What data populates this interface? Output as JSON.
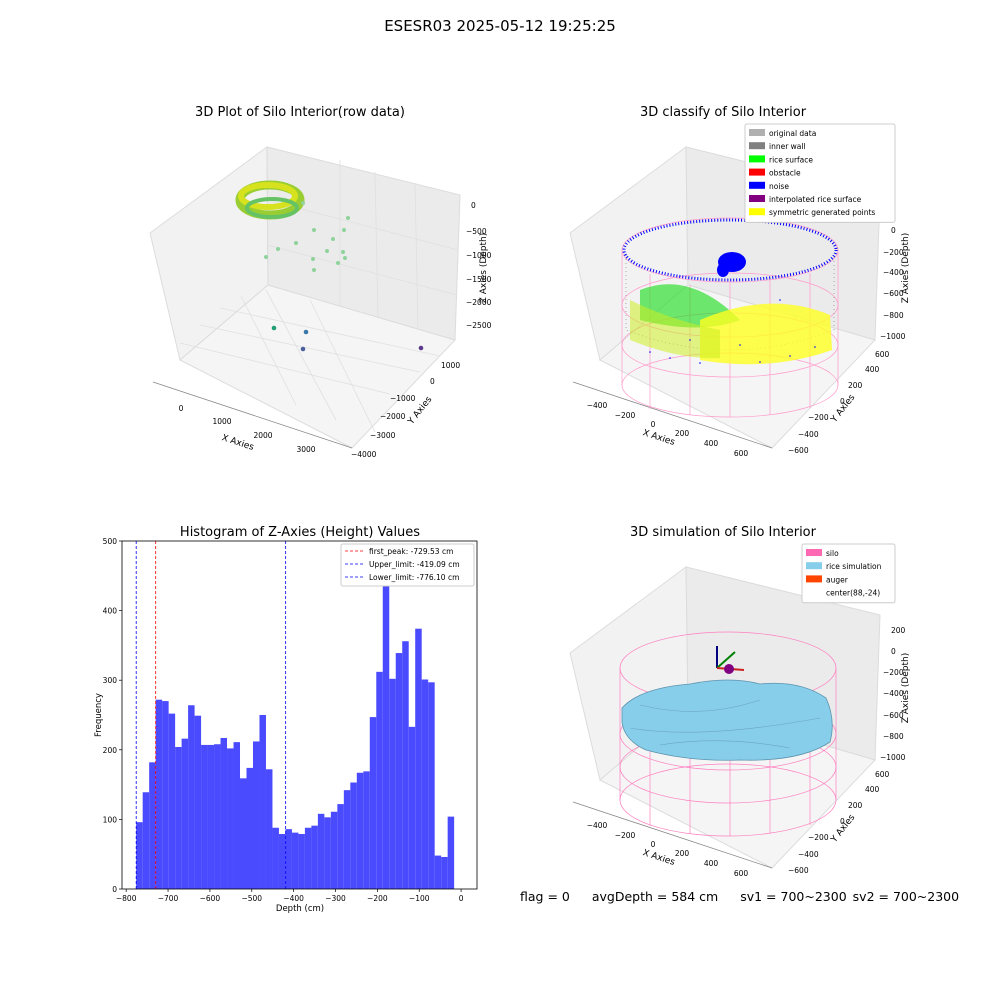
{
  "figure": {
    "suptitle": "ESESR03 2025-05-12 19:25:25",
    "status": {
      "flag": "flag = 0",
      "avg_depth": "avgDepth = 584 cm",
      "sv1": "sv1 = 700~2300",
      "sv2": "sv2 = 700~2300"
    }
  },
  "chart_data": [
    {
      "type": "scatter",
      "title": "3D Plot of Silo Interior(row data)",
      "xlabel": "X Axies",
      "ylabel": "Y Axies",
      "zlabel": "Z Axies (Depth)",
      "x_ticks": [
        "0",
        "1000",
        "2000",
        "3000"
      ],
      "y_ticks": [
        "1000",
        "0",
        "−1000",
        "−2000",
        "−3000",
        "−4000"
      ],
      "z_ticks": [
        "0",
        "−500",
        "−1000",
        "−1500",
        "−2000",
        "−2500"
      ],
      "colormap": "viridis"
    },
    {
      "type": "scatter",
      "title": "3D classify of Silo Interior",
      "xlabel": "X Axies",
      "ylabel": "Y Axies",
      "zlabel": "Z Axies (Depth)",
      "x_ticks": [
        "−400",
        "−200",
        "0",
        "200",
        "400",
        "600"
      ],
      "y_ticks": [
        "600",
        "400",
        "200",
        "0",
        "−200",
        "−400",
        "−600"
      ],
      "z_ticks": [
        "0",
        "−200",
        "−400",
        "−600",
        "−800",
        "−1000"
      ],
      "legend_position": "top-right",
      "legend": [
        {
          "label": "original data",
          "color": "#b0b0b0"
        },
        {
          "label": "inner wall",
          "color": "#808080"
        },
        {
          "label": "rice surface",
          "color": "#00ff00"
        },
        {
          "label": "obstacle",
          "color": "#ff0000"
        },
        {
          "label": "noise",
          "color": "#0000ff"
        },
        {
          "label": "interpolated rice surface",
          "color": "#800080"
        },
        {
          "label": "symmetric generated points",
          "color": "#ffff00"
        }
      ]
    },
    {
      "type": "bar",
      "title": "Histogram of Z-Axies (Height) Values",
      "xlabel": "Depth (cm)",
      "ylabel": "Frequency",
      "xlim": [
        -810,
        38
      ],
      "ylim": [
        0,
        500
      ],
      "x_ticks": [
        -800,
        -700,
        -600,
        -500,
        -400,
        -300,
        -200,
        -100,
        0
      ],
      "y_ticks": [
        0,
        100,
        200,
        300,
        400,
        500
      ],
      "bin_start": -776.1,
      "bin_width": 15.5,
      "bar_color": "#4a4aff",
      "values": [
        96,
        139,
        182,
        272,
        270,
        252,
        204,
        216,
        264,
        249,
        207,
        207,
        208,
        217,
        202,
        211,
        159,
        174,
        212,
        250,
        172,
        88,
        79,
        86,
        81,
        79,
        88,
        91,
        108,
        103,
        111,
        122,
        142,
        153,
        167,
        169,
        247,
        312,
        435,
        302,
        339,
        356,
        233,
        374,
        301,
        297,
        48,
        46,
        104
      ],
      "vlines": [
        {
          "label": "first_peak: -729.53 cm",
          "x": -729.53,
          "color": "#ff0000"
        },
        {
          "label": "Upper_limit: -419.09 cm",
          "x": -419.09,
          "color": "#0000ff"
        },
        {
          "label": "Lower_limit: -776.10 cm",
          "x": -776.1,
          "color": "#0000ff"
        }
      ],
      "legend_position": "top-right"
    },
    {
      "type": "area",
      "title": "3D simulation of Silo Interior",
      "xlabel": "X Axies",
      "ylabel": "Y Axies",
      "zlabel": "Z Axies (Depth)",
      "x_ticks": [
        "−400",
        "−200",
        "0",
        "200",
        "400",
        "600"
      ],
      "y_ticks": [
        "600",
        "400",
        "200",
        "0",
        "−200",
        "−400",
        "−600"
      ],
      "z_ticks": [
        "200",
        "0",
        "−200",
        "−400",
        "−600",
        "−800",
        "−1000"
      ],
      "legend_position": "top-right",
      "legend": [
        {
          "label": "silo",
          "color": "#ff69b4"
        },
        {
          "label": "rice simulation",
          "color": "#87ceeb"
        },
        {
          "label": "auger",
          "color": "#ff4500"
        },
        {
          "label": "center(88,-24)",
          "color": ""
        }
      ]
    }
  ]
}
